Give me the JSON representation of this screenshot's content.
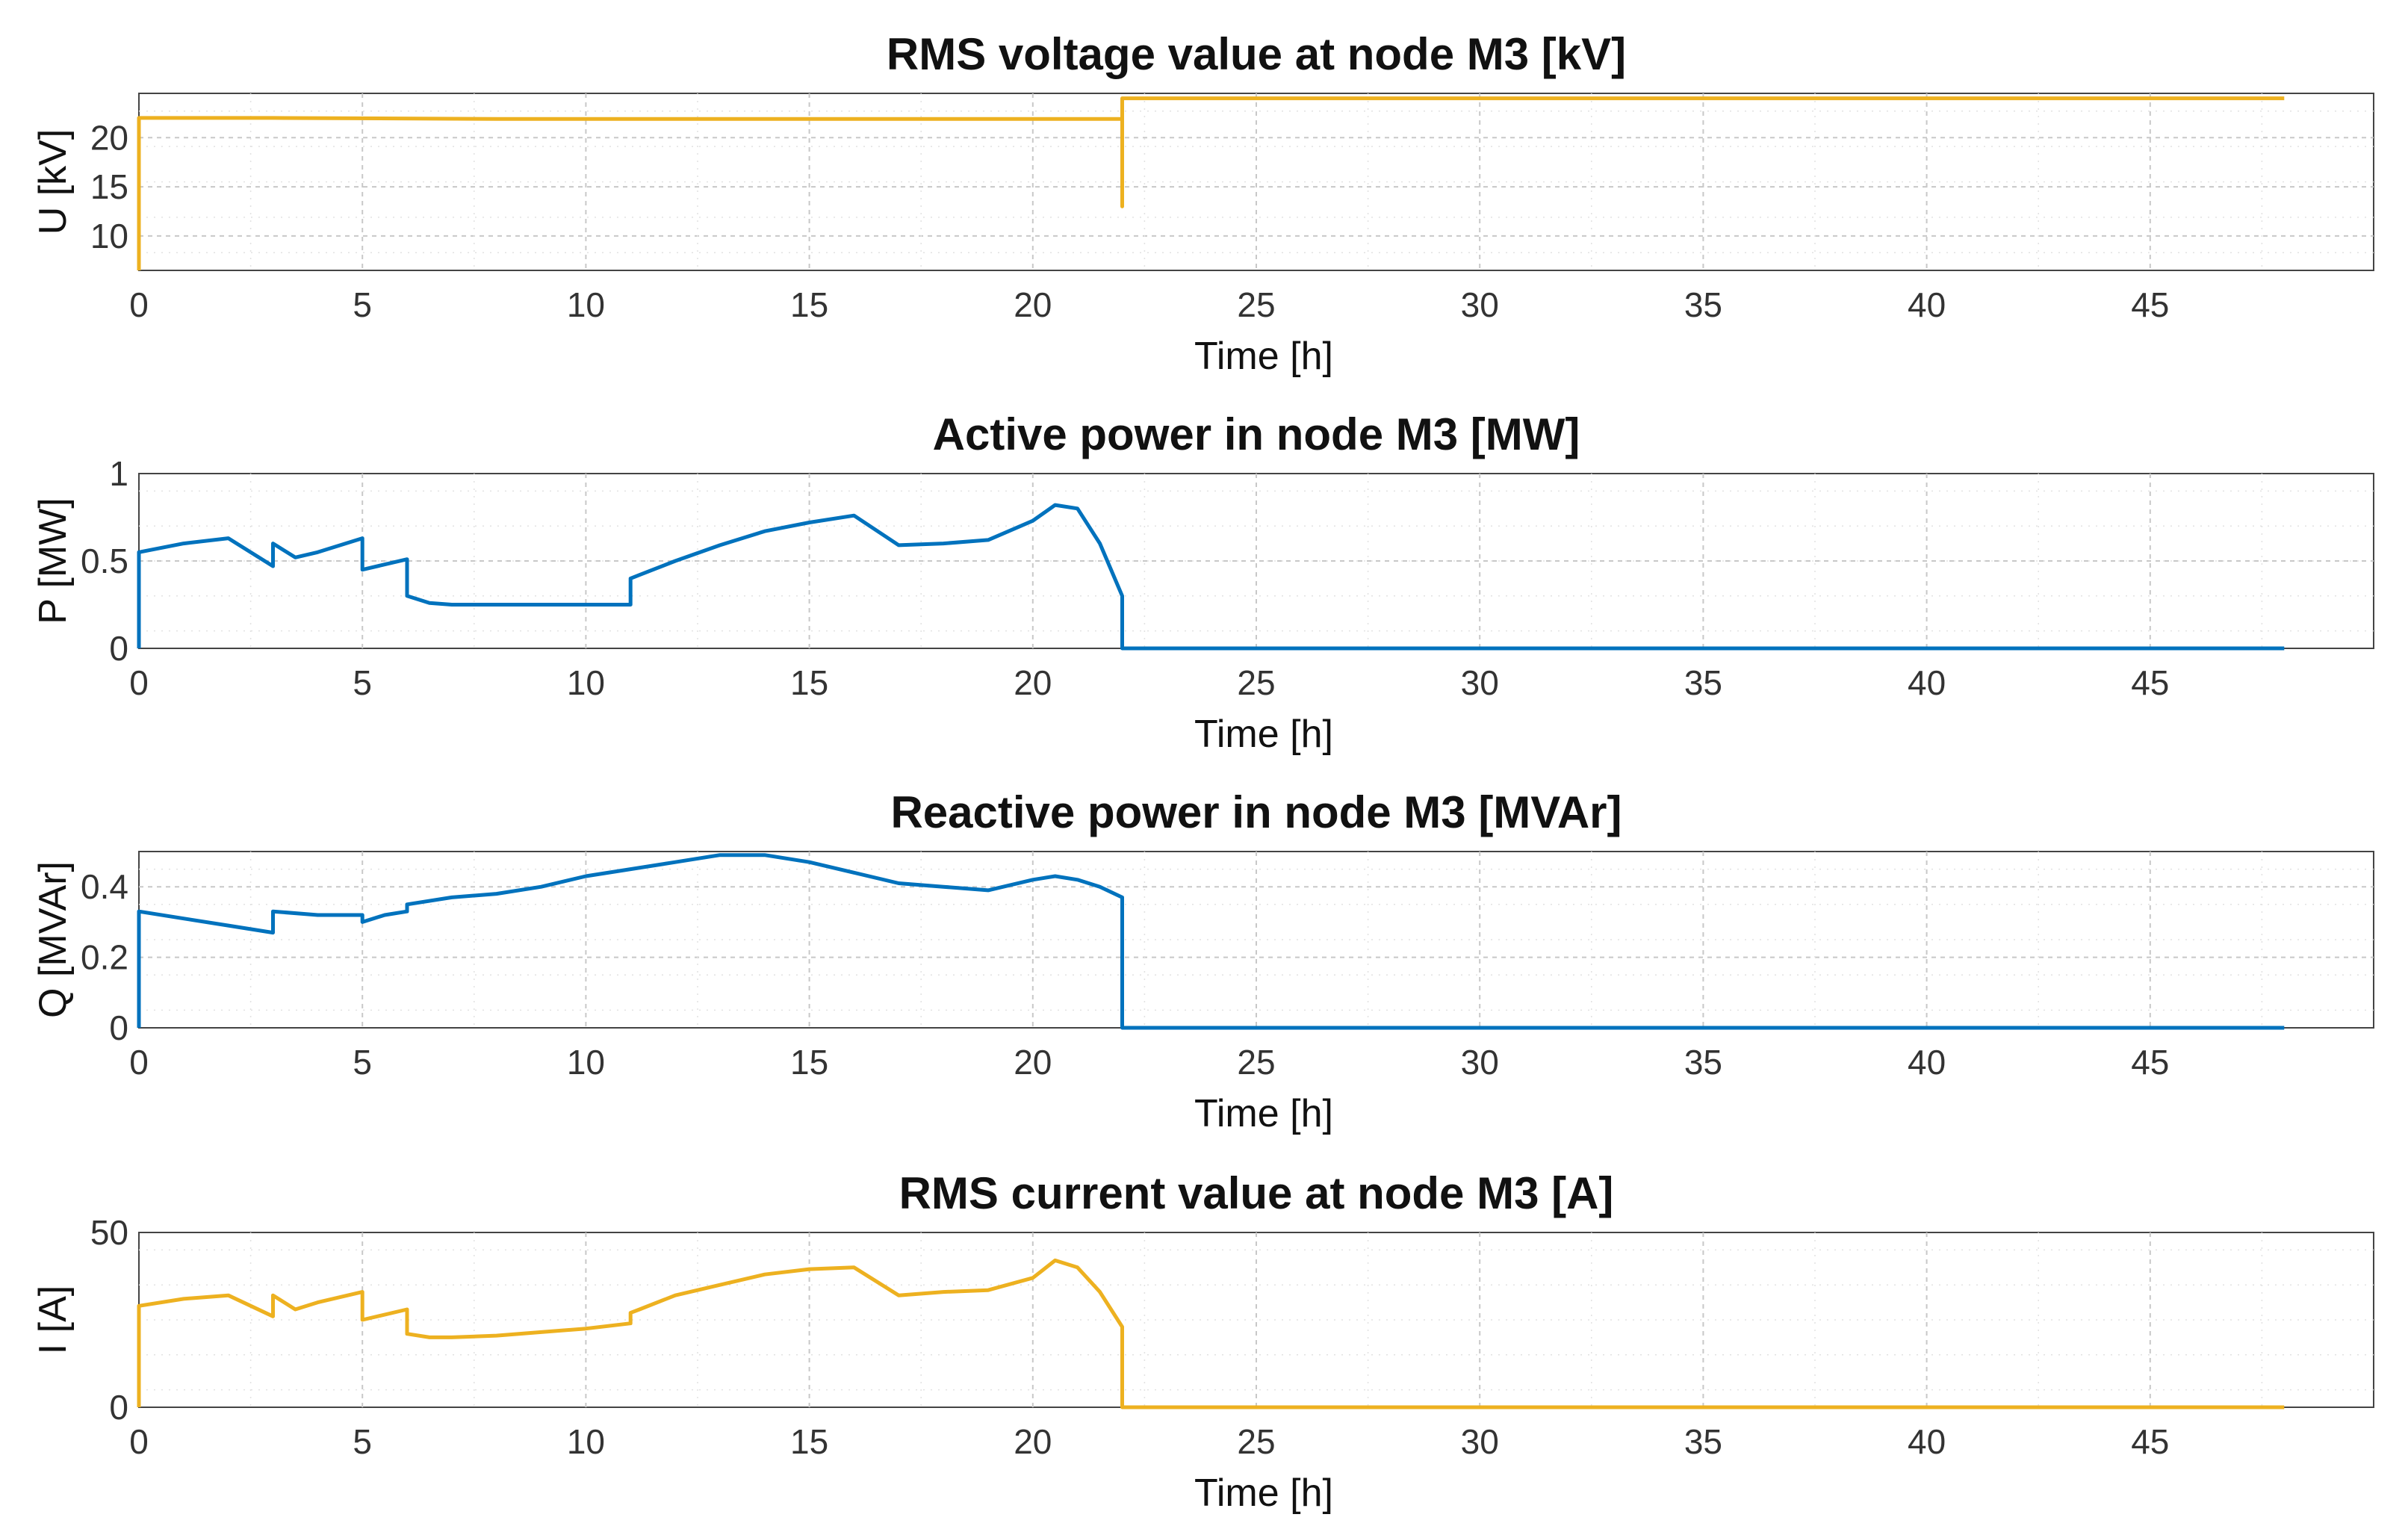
{
  "chart_data": [
    {
      "type": "line",
      "title": "RMS voltage value at node M3 [kV]",
      "xlabel": "Time [h]",
      "ylabel": "U [kV]",
      "xlim": [
        0,
        50
      ],
      "ylim": [
        6.5,
        24.5
      ],
      "xticks": [
        0,
        5,
        10,
        15,
        20,
        25,
        30,
        35,
        40,
        45
      ],
      "yticks": [
        10,
        15,
        20
      ],
      "grid": true,
      "series": [
        {
          "name": "U",
          "color": "#EDB120",
          "x": [
            0,
            0,
            3,
            8,
            15,
            20,
            22,
            22,
            22,
            35,
            48
          ],
          "y": [
            6.5,
            22.0,
            22.0,
            21.9,
            21.9,
            21.9,
            21.9,
            13.0,
            24.0,
            24.0,
            24.0
          ]
        }
      ]
    },
    {
      "type": "line",
      "title": "Active power in node M3 [MW]",
      "xlabel": "Time [h]",
      "ylabel": "P [MW]",
      "xlim": [
        0,
        50
      ],
      "ylim": [
        0,
        1
      ],
      "xticks": [
        0,
        5,
        10,
        15,
        20,
        25,
        30,
        35,
        40,
        45
      ],
      "yticks": [
        0,
        0.5,
        1
      ],
      "grid": true,
      "series": [
        {
          "name": "P",
          "color": "#0072BD",
          "x": [
            0,
            0,
            1,
            2,
            3,
            3,
            3.5,
            4,
            5,
            5,
            6,
            6,
            6.5,
            7,
            8,
            9,
            10,
            11,
            11,
            11.2,
            12,
            13,
            14,
            15,
            16,
            17,
            18,
            19,
            20,
            20.5,
            21,
            21.5,
            22,
            22,
            23,
            35,
            48
          ],
          "y": [
            0,
            0.55,
            0.6,
            0.63,
            0.47,
            0.6,
            0.52,
            0.55,
            0.63,
            0.45,
            0.51,
            0.3,
            0.26,
            0.25,
            0.25,
            0.25,
            0.25,
            0.25,
            0.4,
            0.42,
            0.5,
            0.59,
            0.67,
            0.72,
            0.76,
            0.59,
            0.6,
            0.62,
            0.73,
            0.82,
            0.8,
            0.6,
            0.3,
            0,
            0,
            0,
            0
          ]
        }
      ]
    },
    {
      "type": "line",
      "title": "Reactive power in node M3 [MVAr]",
      "xlabel": "Time [h]",
      "ylabel": "Q [MVAr]",
      "xlim": [
        0,
        50
      ],
      "ylim": [
        0,
        0.5
      ],
      "xticks": [
        0,
        5,
        10,
        15,
        20,
        25,
        30,
        35,
        40,
        45
      ],
      "yticks": [
        0,
        0.2,
        0.4
      ],
      "grid": true,
      "series": [
        {
          "name": "Q",
          "color": "#0072BD",
          "x": [
            0,
            0,
            1,
            2,
            3,
            3,
            4,
            5,
            5,
            5.5,
            6,
            6,
            7,
            8,
            9,
            10,
            11,
            12,
            13,
            14,
            15,
            16,
            17,
            18,
            19,
            20,
            20.5,
            21,
            21.5,
            22,
            22,
            23,
            35,
            48
          ],
          "y": [
            0,
            0.33,
            0.31,
            0.29,
            0.27,
            0.33,
            0.32,
            0.32,
            0.3,
            0.32,
            0.33,
            0.35,
            0.37,
            0.38,
            0.4,
            0.43,
            0.45,
            0.47,
            0.49,
            0.49,
            0.47,
            0.44,
            0.41,
            0.4,
            0.39,
            0.42,
            0.43,
            0.42,
            0.4,
            0.37,
            0,
            0,
            0,
            0
          ]
        }
      ]
    },
    {
      "type": "line",
      "title": "RMS current value at node M3 [A]",
      "xlabel": "Time [h]",
      "ylabel": "I [A]",
      "xlim": [
        0,
        50
      ],
      "ylim": [
        0,
        50
      ],
      "xticks": [
        0,
        5,
        10,
        15,
        20,
        25,
        30,
        35,
        40,
        45
      ],
      "yticks": [
        0,
        50
      ],
      "grid": true,
      "series": [
        {
          "name": "I",
          "color": "#EDB120",
          "x": [
            0,
            0,
            1,
            2,
            3,
            3,
            3.5,
            4,
            5,
            5,
            6,
            6,
            6.5,
            7,
            8,
            9,
            10,
            11,
            11,
            11.2,
            12,
            13,
            14,
            15,
            16,
            17,
            18,
            19,
            20,
            20.5,
            21,
            21.5,
            22,
            22,
            23,
            35,
            48
          ],
          "y": [
            0,
            29,
            31,
            32,
            26,
            32,
            28,
            30,
            33,
            25,
            28,
            21,
            20,
            20,
            20.5,
            21.5,
            22.5,
            24,
            27,
            28,
            32,
            35,
            38,
            39.5,
            40,
            32,
            33,
            33.5,
            37,
            42,
            40,
            33,
            23,
            0,
            0,
            0,
            0
          ]
        }
      ]
    }
  ]
}
